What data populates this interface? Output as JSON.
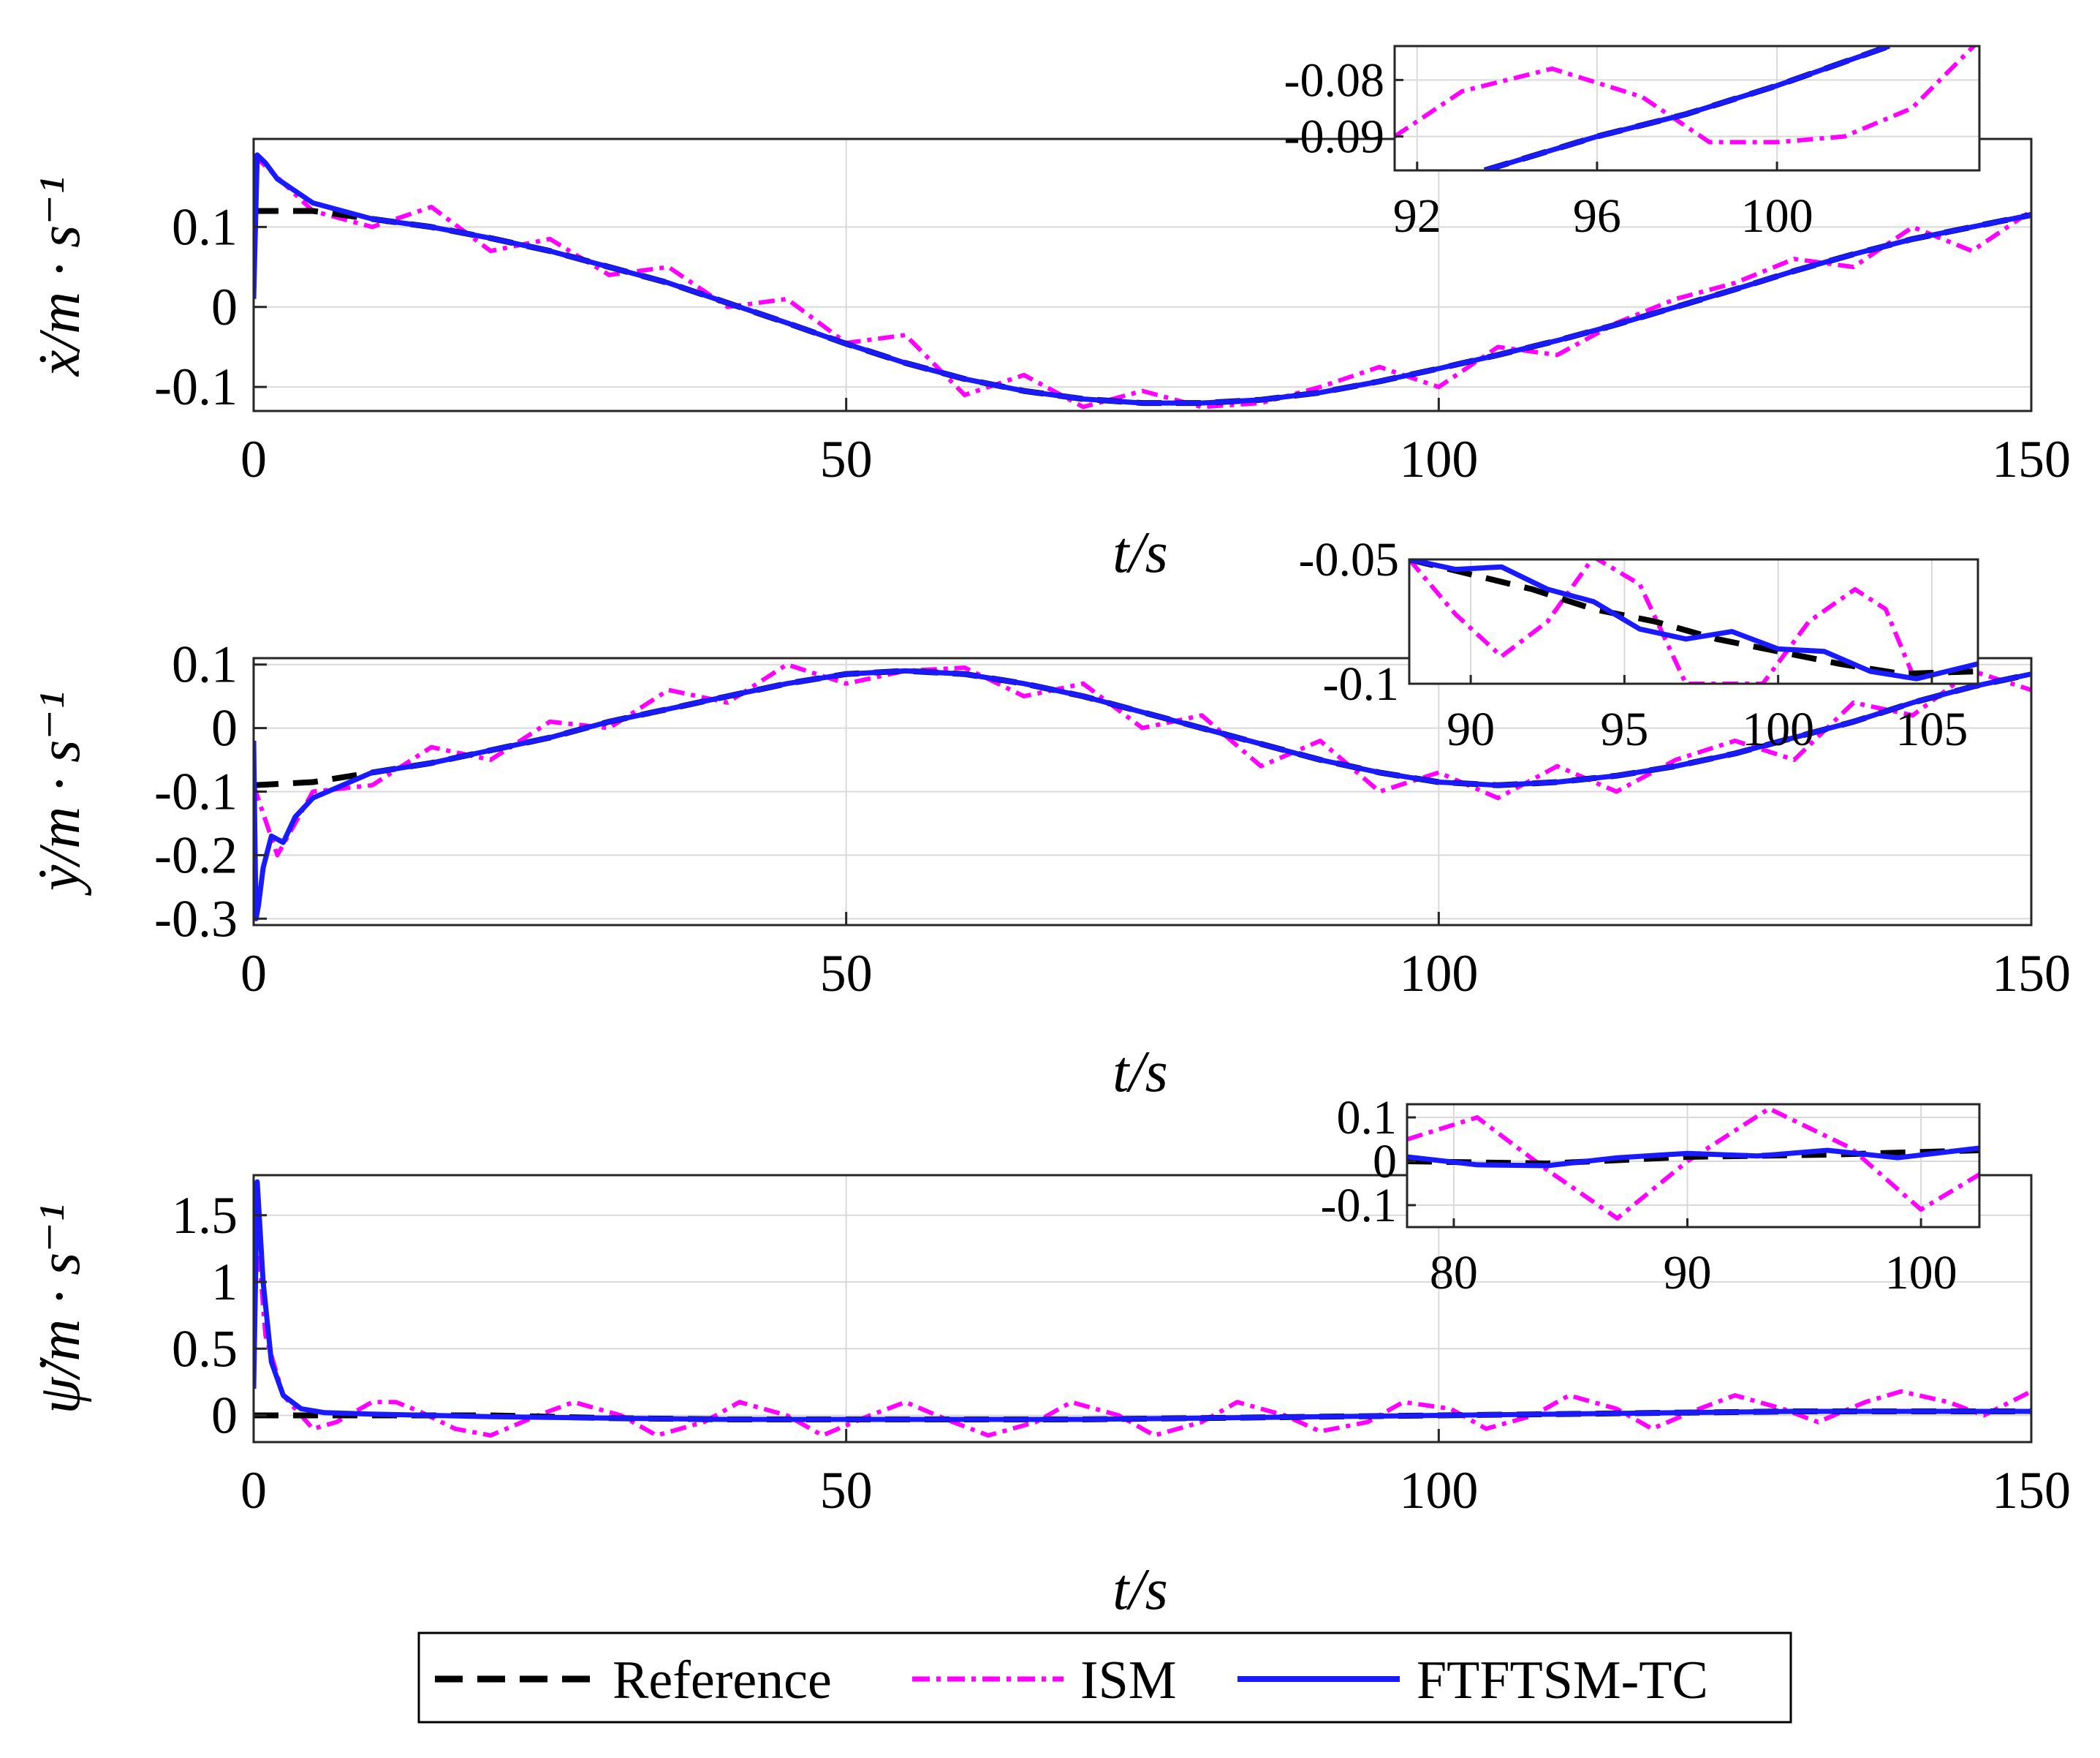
{
  "colors": {
    "reference": "#000000",
    "ism": "#ff00ff",
    "ftftsm": "#1a1aff",
    "grid": "#d9d9d9",
    "axis": "#262626"
  },
  "legend": {
    "items": [
      {
        "key": "reference",
        "label": "Reference"
      },
      {
        "key": "ism",
        "label": "ISM"
      },
      {
        "key": "ftftsm",
        "label": "FTFTSM-TC"
      }
    ]
  },
  "chart_data": [
    {
      "type": "line",
      "id": "xdot",
      "ylabel": "ẋ/m · s⁻¹",
      "xlabel": "t/s",
      "xlim": [
        0,
        150
      ],
      "ylim": [
        -0.13,
        0.21
      ],
      "xticks": [
        {
          "value": 0,
          "label": "0"
        },
        {
          "value": 50,
          "label": "50"
        },
        {
          "value": 100,
          "label": "100"
        },
        {
          "value": 150,
          "label": "150"
        }
      ],
      "yticks": [
        {
          "value": 0.1,
          "label": "0.1"
        },
        {
          "value": 0,
          "label": "0"
        },
        {
          "value": -0.1,
          "label": "-0.1"
        }
      ],
      "series": [
        {
          "name": "Reference",
          "x": [
            0,
            5,
            10,
            15,
            20,
            25,
            30,
            35,
            40,
            45,
            50,
            55,
            60,
            65,
            70,
            75,
            80,
            85,
            90,
            95,
            100,
            105,
            110,
            115,
            120,
            125,
            130,
            135,
            140,
            145,
            150
          ],
          "y": [
            0.12,
            0.12,
            0.11,
            0.1,
            0.086,
            0.07,
            0.05,
            0.03,
            0.005,
            -0.02,
            -0.046,
            -0.07,
            -0.09,
            -0.105,
            -0.115,
            -0.12,
            -0.12,
            -0.116,
            -0.107,
            -0.093,
            -0.077,
            -0.06,
            -0.042,
            -0.022,
            0.0,
            0.022,
            0.045,
            0.066,
            0.085,
            0.1,
            0.115
          ]
        },
        {
          "name": "ISM",
          "x": [
            0,
            5,
            10,
            15,
            20,
            25,
            30,
            35,
            40,
            45,
            50,
            55,
            60,
            65,
            70,
            75,
            80,
            85,
            90,
            95,
            100,
            105,
            110,
            115,
            120,
            125,
            130,
            135,
            140,
            145,
            150
          ],
          "y": [
            0.19,
            0.12,
            0.1,
            0.125,
            0.07,
            0.085,
            0.04,
            0.05,
            0.0,
            0.01,
            -0.045,
            -0.035,
            -0.11,
            -0.085,
            -0.125,
            -0.105,
            -0.125,
            -0.12,
            -0.1,
            -0.075,
            -0.1,
            -0.05,
            -0.06,
            -0.02,
            0.01,
            0.03,
            0.06,
            0.05,
            0.1,
            0.07,
            0.12
          ]
        },
        {
          "name": "FTFTSM-TC",
          "x": [
            0,
            0.3,
            1,
            2,
            5,
            10,
            15,
            20,
            25,
            30,
            35,
            40,
            45,
            50,
            55,
            60,
            65,
            70,
            75,
            80,
            85,
            90,
            95,
            100,
            105,
            110,
            115,
            120,
            125,
            130,
            135,
            140,
            145,
            150
          ],
          "y": [
            0.01,
            0.19,
            0.18,
            0.16,
            0.13,
            0.11,
            0.1,
            0.086,
            0.07,
            0.05,
            0.03,
            0.005,
            -0.02,
            -0.046,
            -0.07,
            -0.09,
            -0.105,
            -0.115,
            -0.12,
            -0.12,
            -0.116,
            -0.107,
            -0.093,
            -0.077,
            -0.06,
            -0.042,
            -0.022,
            0.0,
            0.022,
            0.045,
            0.066,
            0.085,
            0.1,
            0.115
          ]
        }
      ],
      "inset": {
        "xlim": [
          91.5,
          104.5
        ],
        "ylim": [
          -0.096,
          -0.074
        ],
        "xticks": [
          {
            "value": 92,
            "label": "92"
          },
          {
            "value": 96,
            "label": "96"
          },
          {
            "value": 100,
            "label": "100"
          }
        ],
        "yticks": [
          {
            "value": -0.08,
            "label": "-0.08"
          },
          {
            "value": -0.09,
            "label": "-0.09"
          }
        ],
        "series": [
          {
            "name": "Reference",
            "x": [
              93.5,
              96,
              98,
              100,
              102.5
            ],
            "y": [
              -0.096,
              -0.09,
              -0.086,
              -0.081,
              -0.074
            ]
          },
          {
            "name": "ISM",
            "x": [
              91.5,
              93,
              95,
              97,
              98.5,
              100,
              101.5,
              103,
              104.5
            ],
            "y": [
              -0.09,
              -0.082,
              -0.078,
              -0.083,
              -0.091,
              -0.091,
              -0.09,
              -0.085,
              -0.073
            ]
          },
          {
            "name": "FTFTSM-TC",
            "x": [
              93.5,
              96,
              98,
              100,
              102.5
            ],
            "y": [
              -0.096,
              -0.09,
              -0.086,
              -0.081,
              -0.074
            ]
          }
        ]
      }
    },
    {
      "type": "line",
      "id": "ydot",
      "ylabel": "ẏ/m · s⁻¹",
      "xlabel": "t/s",
      "xlim": [
        0,
        150
      ],
      "ylim": [
        -0.31,
        0.11
      ],
      "xticks": [
        {
          "value": 0,
          "label": "0"
        },
        {
          "value": 50,
          "label": "50"
        },
        {
          "value": 100,
          "label": "100"
        },
        {
          "value": 150,
          "label": "150"
        }
      ],
      "yticks": [
        {
          "value": 0.1,
          "label": "0.1"
        },
        {
          "value": 0,
          "label": "0"
        },
        {
          "value": -0.1,
          "label": "-0.1"
        },
        {
          "value": -0.2,
          "label": "-0.2"
        },
        {
          "value": -0.3,
          "label": "-0.3"
        }
      ],
      "series": [
        {
          "name": "Reference",
          "x": [
            0,
            5,
            10,
            15,
            20,
            25,
            30,
            35,
            40,
            45,
            50,
            55,
            60,
            65,
            70,
            75,
            80,
            85,
            90,
            95,
            100,
            105,
            110,
            115,
            120,
            125,
            130,
            135,
            140,
            145,
            150
          ],
          "y": [
            -0.09,
            -0.085,
            -0.07,
            -0.055,
            -0.035,
            -0.015,
            0.01,
            0.03,
            0.05,
            0.07,
            0.085,
            0.09,
            0.085,
            0.07,
            0.05,
            0.025,
            0.0,
            -0.025,
            -0.05,
            -0.07,
            -0.085,
            -0.09,
            -0.085,
            -0.075,
            -0.06,
            -0.04,
            -0.015,
            0.01,
            0.04,
            0.065,
            0.085
          ]
        },
        {
          "name": "ISM",
          "x": [
            0,
            2,
            5,
            10,
            15,
            20,
            25,
            30,
            35,
            40,
            45,
            50,
            55,
            60,
            65,
            70,
            75,
            80,
            85,
            90,
            95,
            100,
            105,
            110,
            115,
            120,
            125,
            130,
            135,
            140,
            145,
            150
          ],
          "y": [
            -0.09,
            -0.2,
            -0.1,
            -0.09,
            -0.03,
            -0.05,
            0.01,
            0.0,
            0.06,
            0.04,
            0.1,
            0.07,
            0.09,
            0.095,
            0.05,
            0.07,
            0.0,
            0.02,
            -0.06,
            -0.02,
            -0.1,
            -0.07,
            -0.11,
            -0.06,
            -0.1,
            -0.05,
            -0.02,
            -0.05,
            0.04,
            0.02,
            0.09,
            0.06
          ]
        },
        {
          "name": "FTFTSM-TC",
          "x": [
            0,
            0.2,
            0.4,
            0.8,
            1.5,
            2.5,
            3.5,
            5,
            10,
            15,
            20,
            25,
            30,
            35,
            40,
            45,
            50,
            55,
            60,
            65,
            70,
            75,
            80,
            85,
            90,
            95,
            100,
            105,
            110,
            115,
            120,
            125,
            130,
            135,
            140,
            145,
            150
          ],
          "y": [
            -0.02,
            -0.3,
            -0.28,
            -0.22,
            -0.17,
            -0.18,
            -0.14,
            -0.11,
            -0.07,
            -0.055,
            -0.035,
            -0.015,
            0.01,
            0.03,
            0.05,
            0.07,
            0.085,
            0.09,
            0.085,
            0.07,
            0.05,
            0.025,
            0.0,
            -0.025,
            -0.05,
            -0.07,
            -0.085,
            -0.09,
            -0.085,
            -0.075,
            -0.06,
            -0.04,
            -0.015,
            0.01,
            0.04,
            0.065,
            0.085
          ]
        }
      ],
      "inset": {
        "xlim": [
          88,
          106.5
        ],
        "ylim": [
          -0.1,
          -0.05
        ],
        "xticks": [
          {
            "value": 90,
            "label": "90"
          },
          {
            "value": 95,
            "label": "95"
          },
          {
            "value": 100,
            "label": "100"
          },
          {
            "value": 105,
            "label": "105"
          }
        ],
        "yticks": [
          {
            "value": -0.05,
            "label": "-0.05"
          },
          {
            "value": -0.1,
            "label": "-0.1"
          }
        ],
        "series": [
          {
            "name": "Reference",
            "x": [
              88,
              90,
              92,
              94,
              96,
              98,
              100,
              102,
              104,
              106.5
            ],
            "y": [
              -0.05,
              -0.056,
              -0.062,
              -0.07,
              -0.075,
              -0.082,
              -0.087,
              -0.092,
              -0.096,
              -0.095
            ]
          },
          {
            "name": "ISM",
            "x": [
              88,
              89.5,
              91,
              92.5,
              94,
              95.5,
              97,
              99.5,
              101,
              102.5,
              103.5,
              104.5
            ],
            "y": [
              -0.05,
              -0.072,
              -0.089,
              -0.075,
              -0.049,
              -0.06,
              -0.1,
              -0.1,
              -0.075,
              -0.062,
              -0.07,
              -0.1
            ]
          },
          {
            "name": "FTFTSM-TC",
            "x": [
              88,
              89.5,
              91,
              92.5,
              94,
              95.5,
              97,
              98.5,
              100,
              101.5,
              103,
              104.5,
              106.5
            ],
            "y": [
              -0.05,
              -0.054,
              -0.053,
              -0.062,
              -0.067,
              -0.078,
              -0.082,
              -0.079,
              -0.086,
              -0.087,
              -0.095,
              -0.098,
              -0.092
            ]
          }
        ]
      }
    },
    {
      "type": "line",
      "id": "psidot",
      "ylabel": "ψ̇/m · s⁻¹",
      "xlabel": "t/s",
      "xlim": [
        0,
        150
      ],
      "ylim": [
        -0.2,
        1.8
      ],
      "xticks": [
        {
          "value": 0,
          "label": "0"
        },
        {
          "value": 50,
          "label": "50"
        },
        {
          "value": 100,
          "label": "100"
        },
        {
          "value": 150,
          "label": "150"
        }
      ],
      "yticks": [
        {
          "value": 1.5,
          "label": "1.5"
        },
        {
          "value": 1,
          "label": "1"
        },
        {
          "value": 0.5,
          "label": "0.5"
        },
        {
          "value": 0,
          "label": "0"
        }
      ],
      "series": [
        {
          "name": "Reference",
          "x": [
            0,
            10,
            20,
            30,
            40,
            50,
            60,
            70,
            80,
            90,
            100,
            110,
            120,
            130,
            140,
            150
          ],
          "y": [
            0.0,
            0.0,
            0.0,
            -0.02,
            -0.03,
            -0.03,
            -0.03,
            -0.03,
            -0.02,
            -0.01,
            0.0,
            0.01,
            0.02,
            0.03,
            0.03,
            0.03
          ]
        },
        {
          "name": "ISM",
          "x": [
            0,
            1,
            2.5,
            5,
            7,
            10,
            12,
            14,
            17,
            20,
            24,
            27,
            31,
            34,
            38,
            41,
            45,
            48,
            52,
            55,
            59,
            62,
            66,
            69,
            73,
            76,
            80,
            83,
            87,
            90,
            94,
            97,
            101,
            104,
            108,
            111,
            115,
            118,
            122,
            125,
            129,
            132,
            136,
            139,
            143,
            146,
            150
          ],
          "y": [
            1.7,
            0.6,
            0.15,
            -0.1,
            -0.05,
            0.1,
            0.1,
            0.03,
            -0.1,
            -0.15,
            0.0,
            0.1,
            0.0,
            -0.15,
            -0.05,
            0.1,
            0.0,
            -0.15,
            0.0,
            0.1,
            -0.05,
            -0.15,
            -0.05,
            0.1,
            0.0,
            -0.15,
            -0.05,
            0.1,
            0.0,
            -0.12,
            -0.05,
            0.1,
            0.05,
            -0.1,
            0.0,
            0.15,
            0.05,
            -0.1,
            0.05,
            0.15,
            0.05,
            -0.05,
            0.1,
            0.18,
            0.1,
            0.0,
            0.18
          ]
        },
        {
          "name": "FTFTSM-TC",
          "x": [
            0,
            0.3,
            0.8,
            1.5,
            2.5,
            4,
            6,
            10,
            20,
            30,
            40,
            50,
            60,
            70,
            80,
            90,
            100,
            110,
            120,
            130,
            140,
            150
          ],
          "y": [
            0.2,
            1.75,
            1.0,
            0.4,
            0.15,
            0.05,
            0.02,
            0.01,
            -0.01,
            -0.02,
            -0.03,
            -0.03,
            -0.03,
            -0.03,
            -0.02,
            -0.01,
            0.0,
            0.01,
            0.02,
            0.03,
            0.03,
            0.03
          ]
        }
      ],
      "inset": {
        "xlim": [
          78,
          102.5
        ],
        "ylim": [
          -0.15,
          0.13
        ],
        "xticks": [
          {
            "value": 80,
            "label": "80"
          },
          {
            "value": 90,
            "label": "90"
          },
          {
            "value": 100,
            "label": "100"
          }
        ],
        "yticks": [
          {
            "value": 0.1,
            "label": "0.1"
          },
          {
            "value": 0,
            "label": "0"
          },
          {
            "value": -0.1,
            "label": "-0.1"
          }
        ],
        "series": [
          {
            "name": "Reference",
            "x": [
              78,
              84,
              90,
              96,
              102.5
            ],
            "y": [
              0.0,
              -0.005,
              0.01,
              0.015,
              0.025
            ]
          },
          {
            "name": "ISM",
            "x": [
              78,
              81,
              84,
              87,
              90,
              93.5,
              97,
              100,
              102.5
            ],
            "y": [
              0.05,
              0.1,
              -0.02,
              -0.13,
              0.0,
              0.12,
              0.03,
              -0.11,
              -0.03
            ]
          },
          {
            "name": "FTFTSM-TC",
            "x": [
              78,
              81,
              84,
              87,
              90,
              93,
              96,
              99,
              102.5
            ],
            "y": [
              0.01,
              -0.008,
              -0.01,
              0.008,
              0.018,
              0.012,
              0.025,
              0.008,
              0.03
            ]
          }
        ]
      }
    }
  ]
}
